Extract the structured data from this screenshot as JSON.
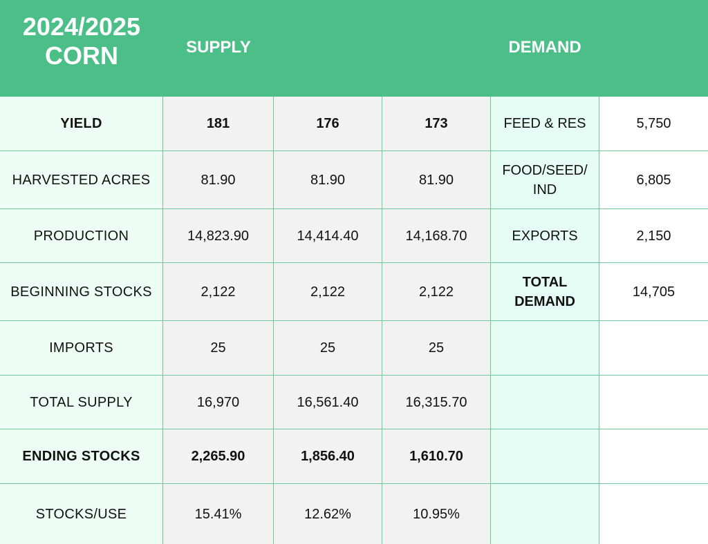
{
  "header": {
    "title_line1": "2024/2025",
    "title_line2": "CORN",
    "supply_label": "SUPPLY",
    "demand_label": "DEMAND"
  },
  "colors": {
    "header_bg": "#4cbf89",
    "label_bg": "#eefcf6",
    "supply_bg": "#f2f2f2",
    "demand_label_bg": "#e6fdf5",
    "grid_line": "#6fc79c"
  },
  "rows": [
    {
      "label": "YIELD",
      "s1": "181",
      "s2": "176",
      "s3": "173",
      "d_label": "FEED & RES",
      "d_value": "5,750"
    },
    {
      "label": "HARVESTED ACRES",
      "s1": "81.90",
      "s2": "81.90",
      "s3": "81.90",
      "d_label": "FOOD/SEED/IND",
      "d_value": "6,805"
    },
    {
      "label": "PRODUCTION",
      "s1": "14,823.90",
      "s2": "14,414.40",
      "s3": "14,168.70",
      "d_label": "EXPORTS",
      "d_value": "2,150"
    },
    {
      "label": "BEGINNING STOCKS",
      "s1": "2,122",
      "s2": "2,122",
      "s3": "2,122",
      "d_label": "TOTAL DEMAND",
      "d_value": "14,705"
    },
    {
      "label": "IMPORTS",
      "s1": "25",
      "s2": "25",
      "s3": "25",
      "d_label": "",
      "d_value": ""
    },
    {
      "label": "TOTAL SUPPLY",
      "s1": "16,970",
      "s2": "16,561.40",
      "s3": "16,315.70",
      "d_label": "",
      "d_value": ""
    },
    {
      "label": "ENDING STOCKS",
      "s1": "2,265.90",
      "s2": "1,856.40",
      "s3": "1,610.70",
      "d_label": "",
      "d_value": ""
    },
    {
      "label": "STOCKS/USE",
      "s1": "15.41%",
      "s2": "12.62%",
      "s3": "10.95%",
      "d_label": "",
      "d_value": ""
    }
  ]
}
